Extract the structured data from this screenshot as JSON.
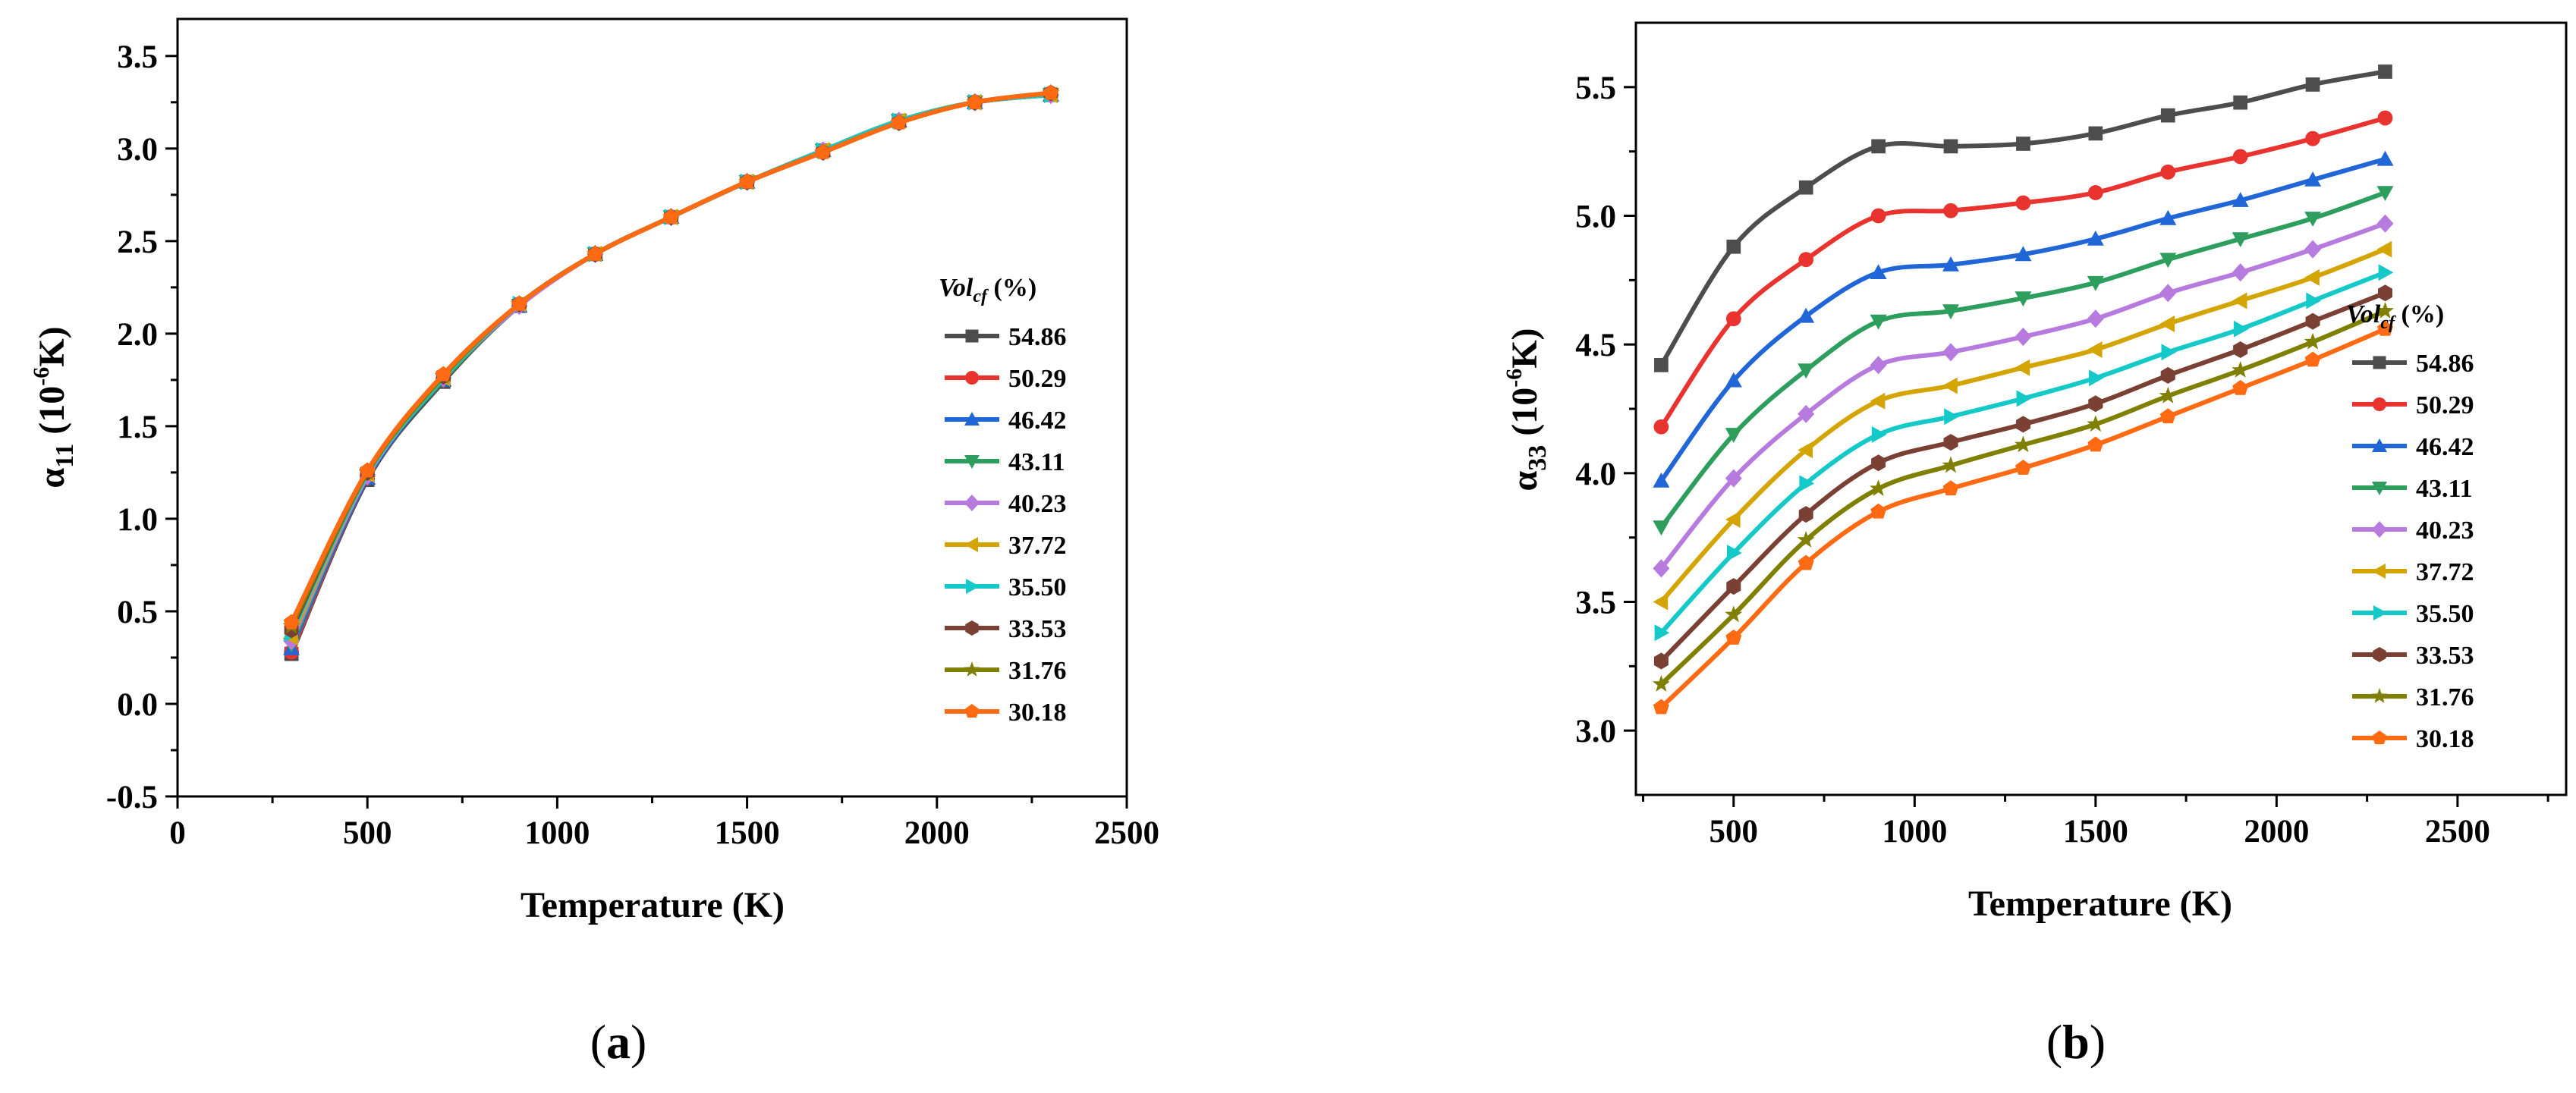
{
  "chart_data": [
    {
      "type": "line",
      "panel_label": "a",
      "xlabel": "Temperature (K)",
      "ylabel": {
        "greek": "α",
        "sub": "11",
        "unit_pre": " (10",
        "unit_sup": "-6",
        "unit_post": "K)"
      },
      "xlim": [
        0,
        2500
      ],
      "ylim": [
        -0.5,
        3.7
      ],
      "xticks": [
        "0",
        "500",
        "1000",
        "1500",
        "2000",
        "2500"
      ],
      "xtick_values": [
        0,
        500,
        1000,
        1500,
        2000,
        2500
      ],
      "yticks": [
        "-0.5",
        "0.0",
        "0.5",
        "1.0",
        "1.5",
        "2.0",
        "2.5",
        "3.0",
        "3.5"
      ],
      "ytick_values": [
        -0.5,
        0.0,
        0.5,
        1.0,
        1.5,
        2.0,
        2.5,
        3.0,
        3.5
      ],
      "legend": {
        "title_main": "Vol",
        "title_sub": "cf",
        "title_suffix": " (%)",
        "placement": "right-middle"
      },
      "x": [
        300,
        500,
        700,
        900,
        1100,
        1300,
        1500,
        1700,
        1900,
        2100,
        2300
      ],
      "series": [
        {
          "name": "54.86",
          "color": "#4d4d4d",
          "marker": "square",
          "values": [
            0.27,
            1.21,
            1.74,
            2.15,
            2.43,
            2.63,
            2.82,
            2.99,
            3.15,
            3.25,
            3.29
          ]
        },
        {
          "name": "50.29",
          "color": "#e8332f",
          "marker": "circle",
          "values": [
            0.28,
            1.22,
            1.75,
            2.15,
            2.43,
            2.63,
            2.82,
            2.99,
            3.15,
            3.25,
            3.29
          ]
        },
        {
          "name": "46.42",
          "color": "#2066d6",
          "marker": "triangle-up",
          "values": [
            0.3,
            1.22,
            1.75,
            2.15,
            2.43,
            2.63,
            2.82,
            2.99,
            3.15,
            3.25,
            3.29
          ]
        },
        {
          "name": "43.11",
          "color": "#2e9e5e",
          "marker": "triangle-down",
          "values": [
            0.32,
            1.23,
            1.75,
            2.15,
            2.43,
            2.63,
            2.82,
            2.99,
            3.15,
            3.25,
            3.29
          ]
        },
        {
          "name": "40.23",
          "color": "#b77be0",
          "marker": "diamond",
          "values": [
            0.34,
            1.23,
            1.76,
            2.15,
            2.43,
            2.63,
            2.82,
            2.99,
            3.15,
            3.25,
            3.29
          ]
        },
        {
          "name": "37.72",
          "color": "#d4a400",
          "marker": "triangle-left",
          "values": [
            0.36,
            1.24,
            1.76,
            2.16,
            2.43,
            2.63,
            2.82,
            2.99,
            3.15,
            3.25,
            3.29
          ]
        },
        {
          "name": "35.50",
          "color": "#16c9c9",
          "marker": "triangle-right",
          "values": [
            0.38,
            1.24,
            1.76,
            2.16,
            2.43,
            2.63,
            2.82,
            2.99,
            3.15,
            3.25,
            3.29
          ]
        },
        {
          "name": "33.53",
          "color": "#7a4034",
          "marker": "hexagon",
          "values": [
            0.4,
            1.25,
            1.77,
            2.16,
            2.43,
            2.63,
            2.82,
            2.98,
            3.14,
            3.25,
            3.3
          ]
        },
        {
          "name": "31.76",
          "color": "#808000",
          "marker": "star",
          "values": [
            0.42,
            1.25,
            1.77,
            2.16,
            2.43,
            2.63,
            2.82,
            2.98,
            3.14,
            3.25,
            3.3
          ]
        },
        {
          "name": "30.18",
          "color": "#ff6a13",
          "marker": "pentagon",
          "values": [
            0.44,
            1.26,
            1.78,
            2.16,
            2.43,
            2.63,
            2.82,
            2.98,
            3.14,
            3.25,
            3.3
          ]
        }
      ]
    },
    {
      "type": "line",
      "panel_label": "b",
      "xlabel": "Temperature (K)",
      "ylabel": {
        "greek": "α",
        "sub": "33",
        "unit_pre": " (10",
        "unit_sup": "-6",
        "unit_post": "K)"
      },
      "xlim": [
        230,
        2800
      ],
      "ylim": [
        2.75,
        5.75
      ],
      "xticks": [
        "500",
        "1000",
        "1500",
        "2000",
        "2500"
      ],
      "xtick_values": [
        500,
        1000,
        1500,
        2000,
        2500
      ],
      "yticks": [
        "3.0",
        "3.5",
        "4.0",
        "4.5",
        "5.0",
        "5.5"
      ],
      "ytick_values": [
        3.0,
        3.5,
        4.0,
        4.5,
        5.0,
        5.5
      ],
      "legend": {
        "title_main": "Vol",
        "title_sub": "cf",
        "title_suffix": " (%)",
        "placement": "right-middle"
      },
      "x": [
        300,
        500,
        700,
        900,
        1100,
        1300,
        1500,
        1700,
        1900,
        2100,
        2300
      ],
      "series": [
        {
          "name": "54.86",
          "color": "#4d4d4d",
          "marker": "square",
          "values": [
            4.42,
            4.88,
            5.11,
            5.27,
            5.27,
            5.28,
            5.32,
            5.39,
            5.44,
            5.51,
            5.56
          ]
        },
        {
          "name": "50.29",
          "color": "#e8332f",
          "marker": "circle",
          "values": [
            4.18,
            4.6,
            4.83,
            5.0,
            5.02,
            5.05,
            5.09,
            5.17,
            5.23,
            5.3,
            5.38
          ]
        },
        {
          "name": "46.42",
          "color": "#2066d6",
          "marker": "triangle-up",
          "values": [
            3.97,
            4.36,
            4.61,
            4.78,
            4.81,
            4.85,
            4.91,
            4.99,
            5.06,
            5.14,
            5.22
          ]
        },
        {
          "name": "43.11",
          "color": "#2e9e5e",
          "marker": "triangle-down",
          "values": [
            3.79,
            4.15,
            4.4,
            4.59,
            4.63,
            4.68,
            4.74,
            4.83,
            4.91,
            4.99,
            5.09
          ]
        },
        {
          "name": "40.23",
          "color": "#b77be0",
          "marker": "diamond",
          "values": [
            3.63,
            3.98,
            4.23,
            4.42,
            4.47,
            4.53,
            4.6,
            4.7,
            4.78,
            4.87,
            4.97
          ]
        },
        {
          "name": "37.72",
          "color": "#d4a400",
          "marker": "triangle-left",
          "values": [
            3.5,
            3.82,
            4.09,
            4.28,
            4.34,
            4.41,
            4.48,
            4.58,
            4.67,
            4.76,
            4.87
          ]
        },
        {
          "name": "35.50",
          "color": "#16c9c9",
          "marker": "triangle-right",
          "values": [
            3.38,
            3.69,
            3.96,
            4.15,
            4.22,
            4.29,
            4.37,
            4.47,
            4.56,
            4.67,
            4.78
          ]
        },
        {
          "name": "33.53",
          "color": "#7a4034",
          "marker": "hexagon",
          "values": [
            3.27,
            3.56,
            3.84,
            4.04,
            4.12,
            4.19,
            4.27,
            4.38,
            4.48,
            4.59,
            4.7
          ]
        },
        {
          "name": "31.76",
          "color": "#808000",
          "marker": "star",
          "values": [
            3.18,
            3.45,
            3.74,
            3.94,
            4.03,
            4.11,
            4.19,
            4.3,
            4.4,
            4.51,
            4.63
          ]
        },
        {
          "name": "30.18",
          "color": "#ff6a13",
          "marker": "pentagon",
          "values": [
            3.09,
            3.36,
            3.65,
            3.85,
            3.94,
            4.02,
            4.11,
            4.22,
            4.33,
            4.44,
            4.56
          ]
        }
      ]
    }
  ]
}
